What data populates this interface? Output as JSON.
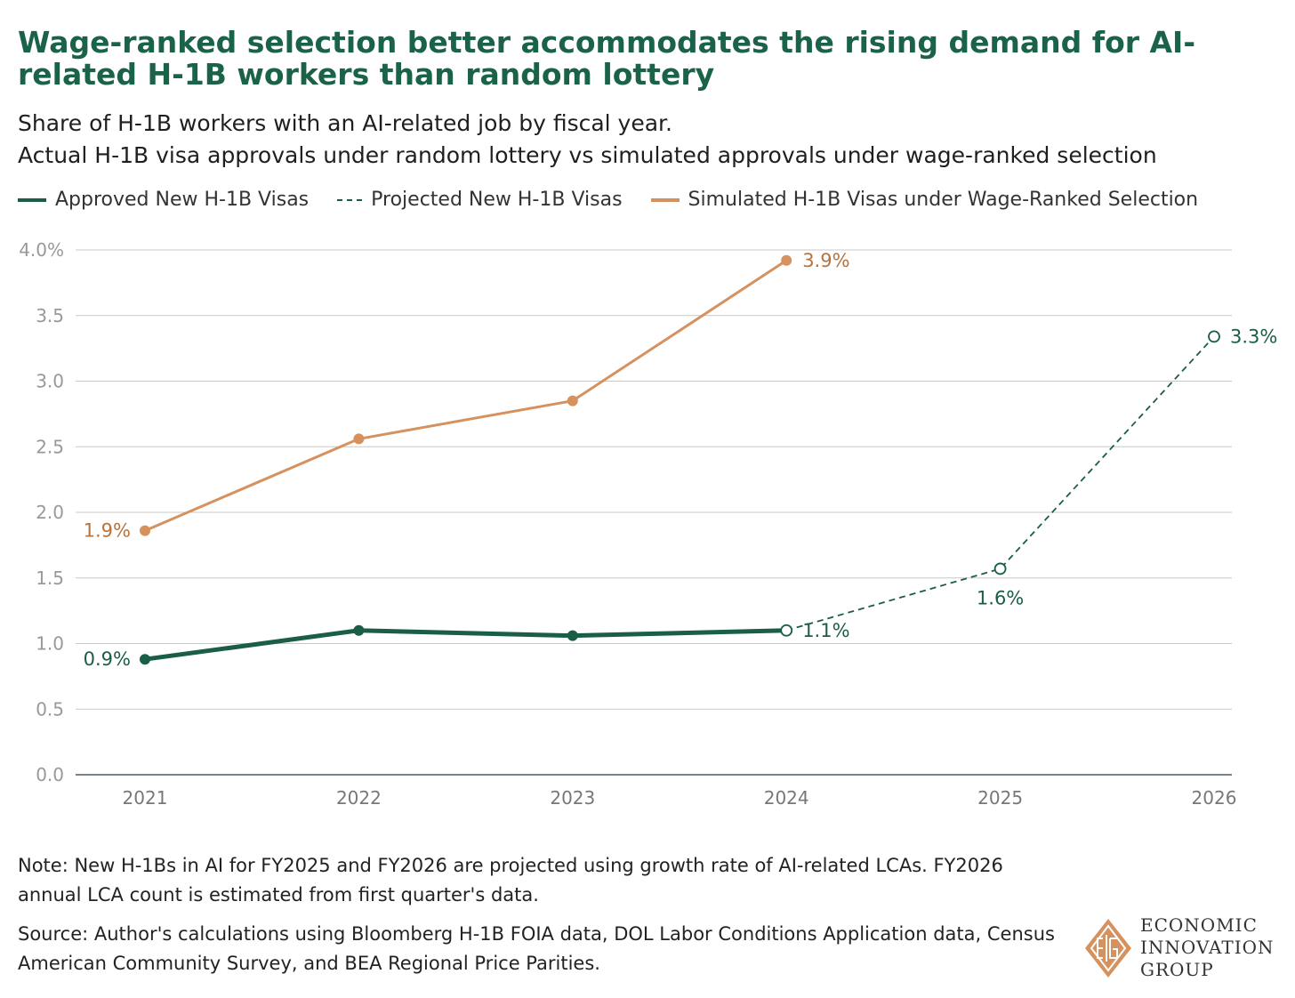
{
  "chart_data": {
    "type": "line",
    "title": "Wage-ranked selection better accommodates the rising demand for AI-related H-1B workers than random lottery",
    "subtitle_lines": [
      "Share of H-1B workers with an AI-related job by fiscal year.",
      "Actual H-1B visa approvals under random lottery vs simulated approvals under wage-ranked selection"
    ],
    "xlabel": "",
    "ylabel": "",
    "x": [
      "2021",
      "2022",
      "2023",
      "2024",
      "2025",
      "2026"
    ],
    "ylim": [
      0,
      4
    ],
    "yticks": [
      "0.0",
      "0.5",
      "1.0",
      "1.5",
      "2.0",
      "2.5",
      "3.0",
      "3.5",
      "4.0%"
    ],
    "grid": true,
    "legend_position": "top-left",
    "series": [
      {
        "name": "Approved New H-1B Visas",
        "style": "solid",
        "color": "#1a5e45",
        "x": [
          "2021",
          "2022",
          "2023",
          "2024"
        ],
        "values": [
          0.88,
          1.1,
          1.06,
          1.1
        ]
      },
      {
        "name": "Projected New H-1B Visas",
        "style": "dashed",
        "color": "#1a5e45",
        "x": [
          "2024",
          "2025",
          "2026"
        ],
        "values": [
          1.1,
          1.57,
          3.34
        ]
      },
      {
        "name": "Simulated H-1B Visas under Wage-Ranked Selection",
        "style": "solid",
        "color": "#d5925f",
        "x": [
          "2021",
          "2022",
          "2023",
          "2024"
        ],
        "values": [
          1.86,
          2.56,
          2.85,
          3.92
        ]
      }
    ],
    "annotations": [
      {
        "text": "1.9%",
        "x": "2021",
        "y": 1.86,
        "placement": "left",
        "color": "#b5733f"
      },
      {
        "text": "3.9%",
        "x": "2024",
        "y": 3.92,
        "placement": "right",
        "color": "#b5733f"
      },
      {
        "text": "0.9%",
        "x": "2021",
        "y": 0.88,
        "placement": "left",
        "color": "#1a5e45"
      },
      {
        "text": "1.1%",
        "x": "2024",
        "y": 1.1,
        "placement": "right",
        "color": "#1a5e45"
      },
      {
        "text": "1.6%",
        "x": "2025",
        "y": 1.57,
        "placement": "below",
        "color": "#1a5e45"
      },
      {
        "text": "3.3%",
        "x": "2026",
        "y": 3.34,
        "placement": "right",
        "color": "#1a5e45"
      }
    ]
  },
  "note": "Note: New H-1Bs in AI for FY2025 and FY2026 are projected using growth rate of AI-related LCAs. FY2026 annual LCA count is estimated from first quarter's data.",
  "source": "Source: Author's calculations using Bloomberg H-1B FOIA data, DOL Labor Conditions Application data, Census American Community Survey, and BEA Regional Price Parities.",
  "logo": {
    "line1": "ECONOMIC",
    "line2": "INNOVATION",
    "line3": "GROUP"
  }
}
